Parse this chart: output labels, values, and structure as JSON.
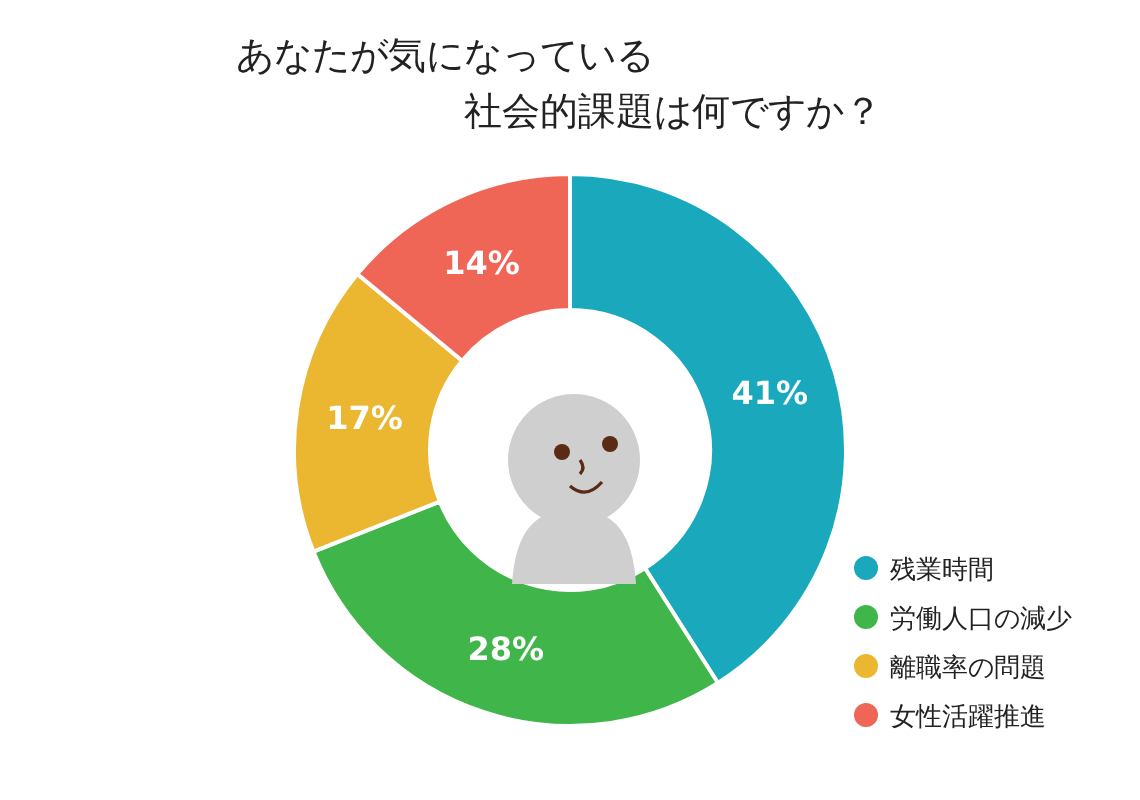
{
  "chart_data": {
    "type": "donut",
    "title": "あなたが気になっている",
    "subtitle": "社会的課題は何ですか？",
    "categories": [
      "残業時間",
      "労働人口の減少",
      "離職率の問題",
      "女性活躍推進"
    ],
    "values": [
      41,
      28,
      17,
      14
    ],
    "colors": [
      "#1aa8bc",
      "#3fb54a",
      "#ebb731",
      "#ef6657"
    ],
    "value_labels": [
      "41%",
      "28%",
      "17%",
      "14%"
    ],
    "legend": "bottom right"
  }
}
